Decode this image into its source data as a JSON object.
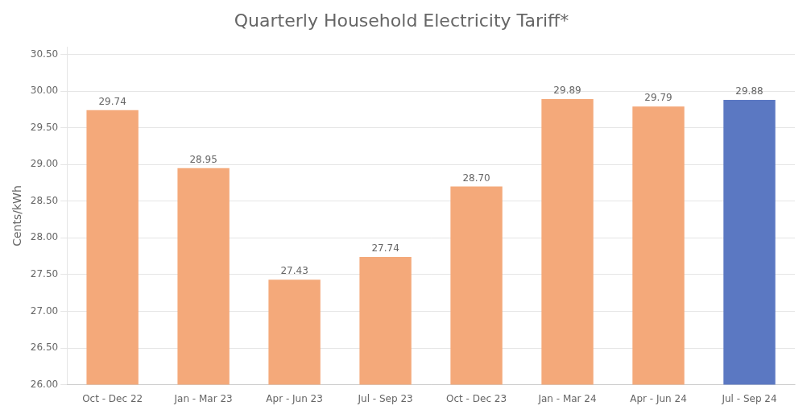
{
  "chart_data": {
    "type": "bar",
    "title": "Quarterly Household Electricity Tariff*",
    "categories": [
      "Oct - Dec 22",
      "Jan - Mar 23",
      "Apr - Jun 23",
      "Jul - Sep 23",
      "Oct - Dec 23",
      "Jan - Mar 24",
      "Apr - Jun 24",
      "Jul - Sep 24"
    ],
    "values": [
      29.74,
      28.95,
      27.43,
      27.74,
      28.7,
      29.89,
      29.79,
      29.88
    ],
    "value_labels": [
      "29.74",
      "28.95",
      "27.43",
      "27.74",
      "28.70",
      "29.89",
      "29.79",
      "29.88"
    ],
    "colors": [
      "#F4A97A",
      "#F4A97A",
      "#F4A97A",
      "#F4A97A",
      "#F4A97A",
      "#F4A97A",
      "#F4A97A",
      "#5B78C2"
    ],
    "ylabel": "Cents/kWh",
    "ylim": [
      26.0,
      30.6
    ],
    "yticks": [
      {
        "value": 26.0,
        "label": "26.00"
      },
      {
        "value": 26.5,
        "label": "26.50"
      },
      {
        "value": 27.0,
        "label": "27.00"
      },
      {
        "value": 27.5,
        "label": "27.50"
      },
      {
        "value": 28.0,
        "label": "28.00"
      },
      {
        "value": 28.5,
        "label": "28.50"
      },
      {
        "value": 29.0,
        "label": "29.00"
      },
      {
        "value": 29.5,
        "label": "29.50"
      },
      {
        "value": 30.0,
        "label": "30.00"
      },
      {
        "value": 30.5,
        "label": "30.50"
      }
    ],
    "grid": true,
    "data_labels": true
  }
}
